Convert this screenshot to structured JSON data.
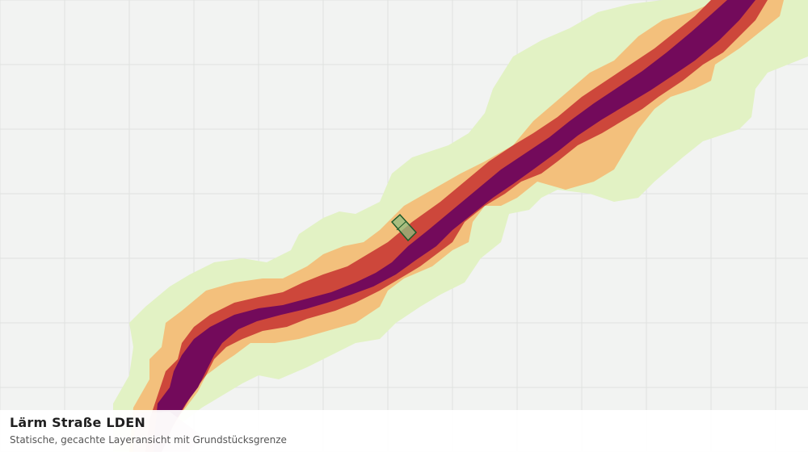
{
  "map": {
    "title": "Lärm Straße LDEN",
    "subtitle": "Statische, gecachte Layeransicht mit Grundstücksgrenze",
    "colors": {
      "background": "#f2f3f2",
      "grid": "#e0e2e0",
      "band_lightgreen": "#e2f2c4",
      "band_orange": "#f3c07c",
      "band_red": "#cd473b",
      "band_purple": "#730a5b",
      "parcel_fill": "#8fbe80",
      "parcel_stroke": "#1e5a2a"
    },
    "layers": [
      {
        "name": "noise-band-lightgreen"
      },
      {
        "name": "noise-band-orange"
      },
      {
        "name": "noise-band-red"
      },
      {
        "name": "noise-band-purple"
      },
      {
        "name": "parcel-boundary"
      }
    ]
  }
}
